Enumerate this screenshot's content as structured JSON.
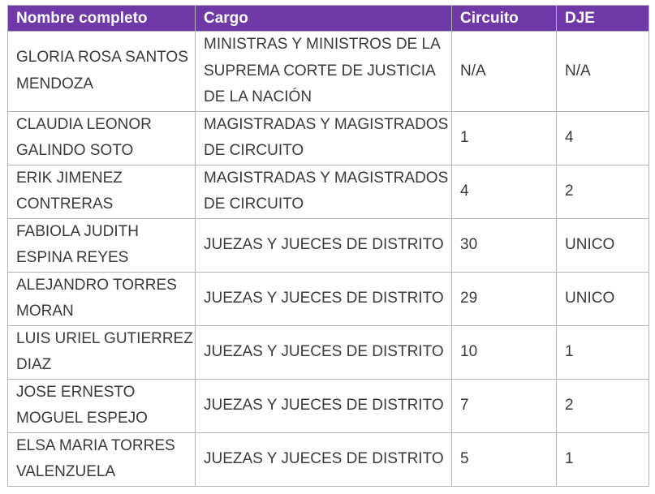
{
  "table": {
    "headers": [
      "Nombre completo",
      "Cargo",
      "Circuito",
      "DJE"
    ],
    "rows": [
      {
        "nombre": "GLORIA ROSA SANTOS MENDOZA",
        "cargo": "MINISTRAS Y MINISTROS DE LA SUPREMA CORTE DE JUSTICIA DE LA NACIÓN",
        "circuito": "N/A",
        "dje": "N/A"
      },
      {
        "nombre": "CLAUDIA LEONOR GALINDO SOTO",
        "cargo": "MAGISTRADAS Y MAGISTRADOS DE CIRCUITO",
        "circuito": "1",
        "dje": "4"
      },
      {
        "nombre": "ERIK JIMENEZ CONTRERAS",
        "cargo": "MAGISTRADAS Y MAGISTRADOS DE CIRCUITO",
        "circuito": "4",
        "dje": "2"
      },
      {
        "nombre": "FABIOLA JUDITH ESPINA REYES",
        "cargo": "JUEZAS Y JUECES DE DISTRITO",
        "circuito": "30",
        "dje": "UNICO"
      },
      {
        "nombre": "ALEJANDRO TORRES MORAN",
        "cargo": "JUEZAS Y JUECES DE DISTRITO",
        "circuito": "29",
        "dje": "UNICO"
      },
      {
        "nombre": "LUIS URIEL GUTIERREZ DIAZ",
        "cargo": "JUEZAS Y JUECES DE DISTRITO",
        "circuito": "10",
        "dje": "1"
      },
      {
        "nombre": "JOSE ERNESTO MOGUEL ESPEJO",
        "cargo": "JUEZAS Y JUECES DE DISTRITO",
        "circuito": "7",
        "dje": "2"
      },
      {
        "nombre": "ELSA MARIA TORRES VALENZUELA",
        "cargo": "JUEZAS Y JUECES DE DISTRITO",
        "circuito": "5",
        "dje": "1"
      }
    ]
  },
  "colors": {
    "header_bg": "#6f3aa8",
    "header_text": "#ffffff",
    "cell_text": "#3a3a3a",
    "border": "#b3b3b3"
  }
}
